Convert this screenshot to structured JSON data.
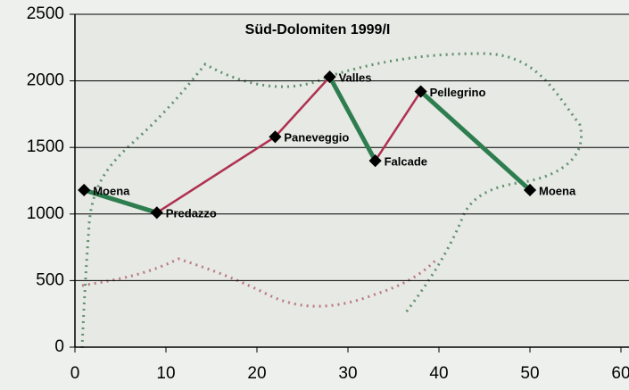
{
  "chart_data": {
    "type": "line",
    "title": "Süd-Dolomiten 1999/I",
    "x": [
      1,
      9,
      22,
      28,
      33,
      38,
      50
    ],
    "values": [
      1180,
      1010,
      1580,
      2030,
      1400,
      1920,
      1180
    ],
    "point_labels": [
      "Moena",
      "Predazzo",
      "Paneveggio",
      "Valles",
      "Falcade",
      "Pellegrino",
      "Moena"
    ],
    "segment_colors": [
      "#2e7d4f",
      "#b03050",
      "#b03050",
      "#2e7d4f",
      "#b03050",
      "#2e7d4f"
    ],
    "marker_color": "#000000",
    "xlim": [
      0,
      60
    ],
    "xticks": [
      0,
      10,
      20,
      30,
      40,
      50,
      60
    ],
    "ylim": [
      0,
      2500
    ],
    "yticks": [
      0,
      500,
      1000,
      1500,
      2000,
      2500
    ],
    "grid": true
  }
}
